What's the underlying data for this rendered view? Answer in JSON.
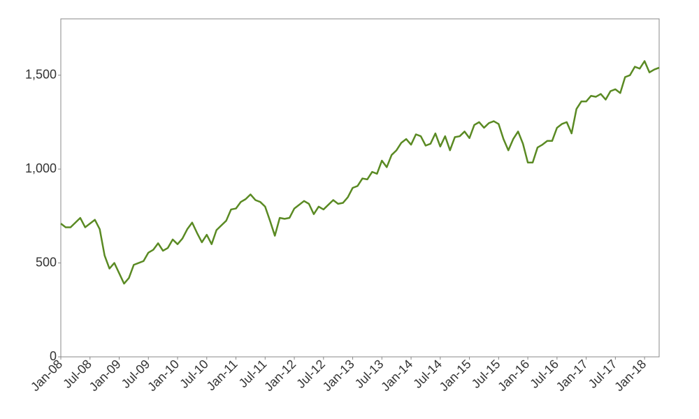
{
  "chart_data": {
    "type": "line",
    "x": [
      "2008-01",
      "2008-02",
      "2008-03",
      "2008-04",
      "2008-05",
      "2008-06",
      "2008-07",
      "2008-08",
      "2008-09",
      "2008-10",
      "2008-11",
      "2008-12",
      "2009-01",
      "2009-02",
      "2009-03",
      "2009-04",
      "2009-05",
      "2009-06",
      "2009-07",
      "2009-08",
      "2009-09",
      "2009-10",
      "2009-11",
      "2009-12",
      "2010-01",
      "2010-02",
      "2010-03",
      "2010-04",
      "2010-05",
      "2010-06",
      "2010-07",
      "2010-08",
      "2010-09",
      "2010-10",
      "2010-11",
      "2010-12",
      "2011-01",
      "2011-02",
      "2011-03",
      "2011-04",
      "2011-05",
      "2011-06",
      "2011-07",
      "2011-08",
      "2011-09",
      "2011-10",
      "2011-11",
      "2011-12",
      "2012-01",
      "2012-02",
      "2012-03",
      "2012-04",
      "2012-05",
      "2012-06",
      "2012-07",
      "2012-08",
      "2012-09",
      "2012-10",
      "2012-11",
      "2012-12",
      "2013-01",
      "2013-02",
      "2013-03",
      "2013-04",
      "2013-05",
      "2013-06",
      "2013-07",
      "2013-08",
      "2013-09",
      "2013-10",
      "2013-11",
      "2013-12",
      "2014-01",
      "2014-02",
      "2014-03",
      "2014-04",
      "2014-05",
      "2014-06",
      "2014-07",
      "2014-08",
      "2014-09",
      "2014-10",
      "2014-11",
      "2014-12",
      "2015-01",
      "2015-02",
      "2015-03",
      "2015-04",
      "2015-05",
      "2015-06",
      "2015-07",
      "2015-08",
      "2015-09",
      "2015-10",
      "2015-11",
      "2015-12",
      "2016-01",
      "2016-02",
      "2016-03",
      "2016-04",
      "2016-05",
      "2016-06",
      "2016-07",
      "2016-08",
      "2016-09",
      "2016-10",
      "2016-11",
      "2016-12",
      "2017-01",
      "2017-02",
      "2017-03",
      "2017-04",
      "2017-05",
      "2017-06",
      "2017-07",
      "2017-08",
      "2017-09",
      "2017-10",
      "2017-11",
      "2017-12",
      "2018-01",
      "2018-02",
      "2018-03",
      "2018-04"
    ],
    "series": [
      {
        "color": "#5a8a23",
        "values": [
          710,
          690,
          690,
          715,
          740,
          690,
          710,
          730,
          680,
          540,
          470,
          500,
          445,
          390,
          420,
          490,
          500,
          510,
          555,
          570,
          605,
          565,
          580,
          625,
          600,
          630,
          680,
          715,
          660,
          610,
          650,
          600,
          675,
          700,
          725,
          785,
          790,
          825,
          840,
          865,
          835,
          825,
          800,
          725,
          645,
          740,
          735,
          740,
          790,
          810,
          830,
          815,
          760,
          800,
          785,
          810,
          835,
          815,
          820,
          850,
          900,
          910,
          950,
          945,
          985,
          975,
          1045,
          1010,
          1075,
          1100,
          1140,
          1160,
          1130,
          1185,
          1175,
          1125,
          1135,
          1190,
          1120,
          1175,
          1100,
          1170,
          1175,
          1200,
          1165,
          1235,
          1250,
          1220,
          1245,
          1255,
          1240,
          1160,
          1100,
          1160,
          1200,
          1135,
          1035,
          1035,
          1115,
          1130,
          1150,
          1150,
          1220,
          1240,
          1250,
          1190,
          1320,
          1360,
          1360,
          1390,
          1385,
          1400,
          1370,
          1415,
          1425,
          1405,
          1490,
          1500,
          1545,
          1535,
          1575,
          1515,
          1530,
          1540
        ]
      }
    ],
    "xlim": [
      "2008-01",
      "2018-04"
    ],
    "xticks": [
      {
        "value": "2008-01",
        "label": "Jan-08"
      },
      {
        "value": "2008-07",
        "label": "Jul-08"
      },
      {
        "value": "2009-01",
        "label": "Jan-09"
      },
      {
        "value": "2009-07",
        "label": "Jul-09"
      },
      {
        "value": "2010-01",
        "label": "Jan-10"
      },
      {
        "value": "2010-07",
        "label": "Jul-10"
      },
      {
        "value": "2011-01",
        "label": "Jan-11"
      },
      {
        "value": "2011-07",
        "label": "Jul-11"
      },
      {
        "value": "2012-01",
        "label": "Jan-12"
      },
      {
        "value": "2012-07",
        "label": "Jul-12"
      },
      {
        "value": "2013-01",
        "label": "Jan-13"
      },
      {
        "value": "2013-07",
        "label": "Jul-13"
      },
      {
        "value": "2014-01",
        "label": "Jan-14"
      },
      {
        "value": "2014-07",
        "label": "Jul-14"
      },
      {
        "value": "2015-01",
        "label": "Jan-15"
      },
      {
        "value": "2015-07",
        "label": "Jul-15"
      },
      {
        "value": "2016-01",
        "label": "Jan-16"
      },
      {
        "value": "2016-07",
        "label": "Jul-16"
      },
      {
        "value": "2017-01",
        "label": "Jan-17"
      },
      {
        "value": "2017-07",
        "label": "Jul-17"
      },
      {
        "value": "2018-01",
        "label": "Jan-18"
      }
    ],
    "ylim": [
      0,
      1800
    ],
    "yticks": [
      0,
      500,
      {
        "value": 1000,
        "label": "1,000"
      },
      {
        "value": 1500,
        "label": "1,500"
      }
    ]
  }
}
